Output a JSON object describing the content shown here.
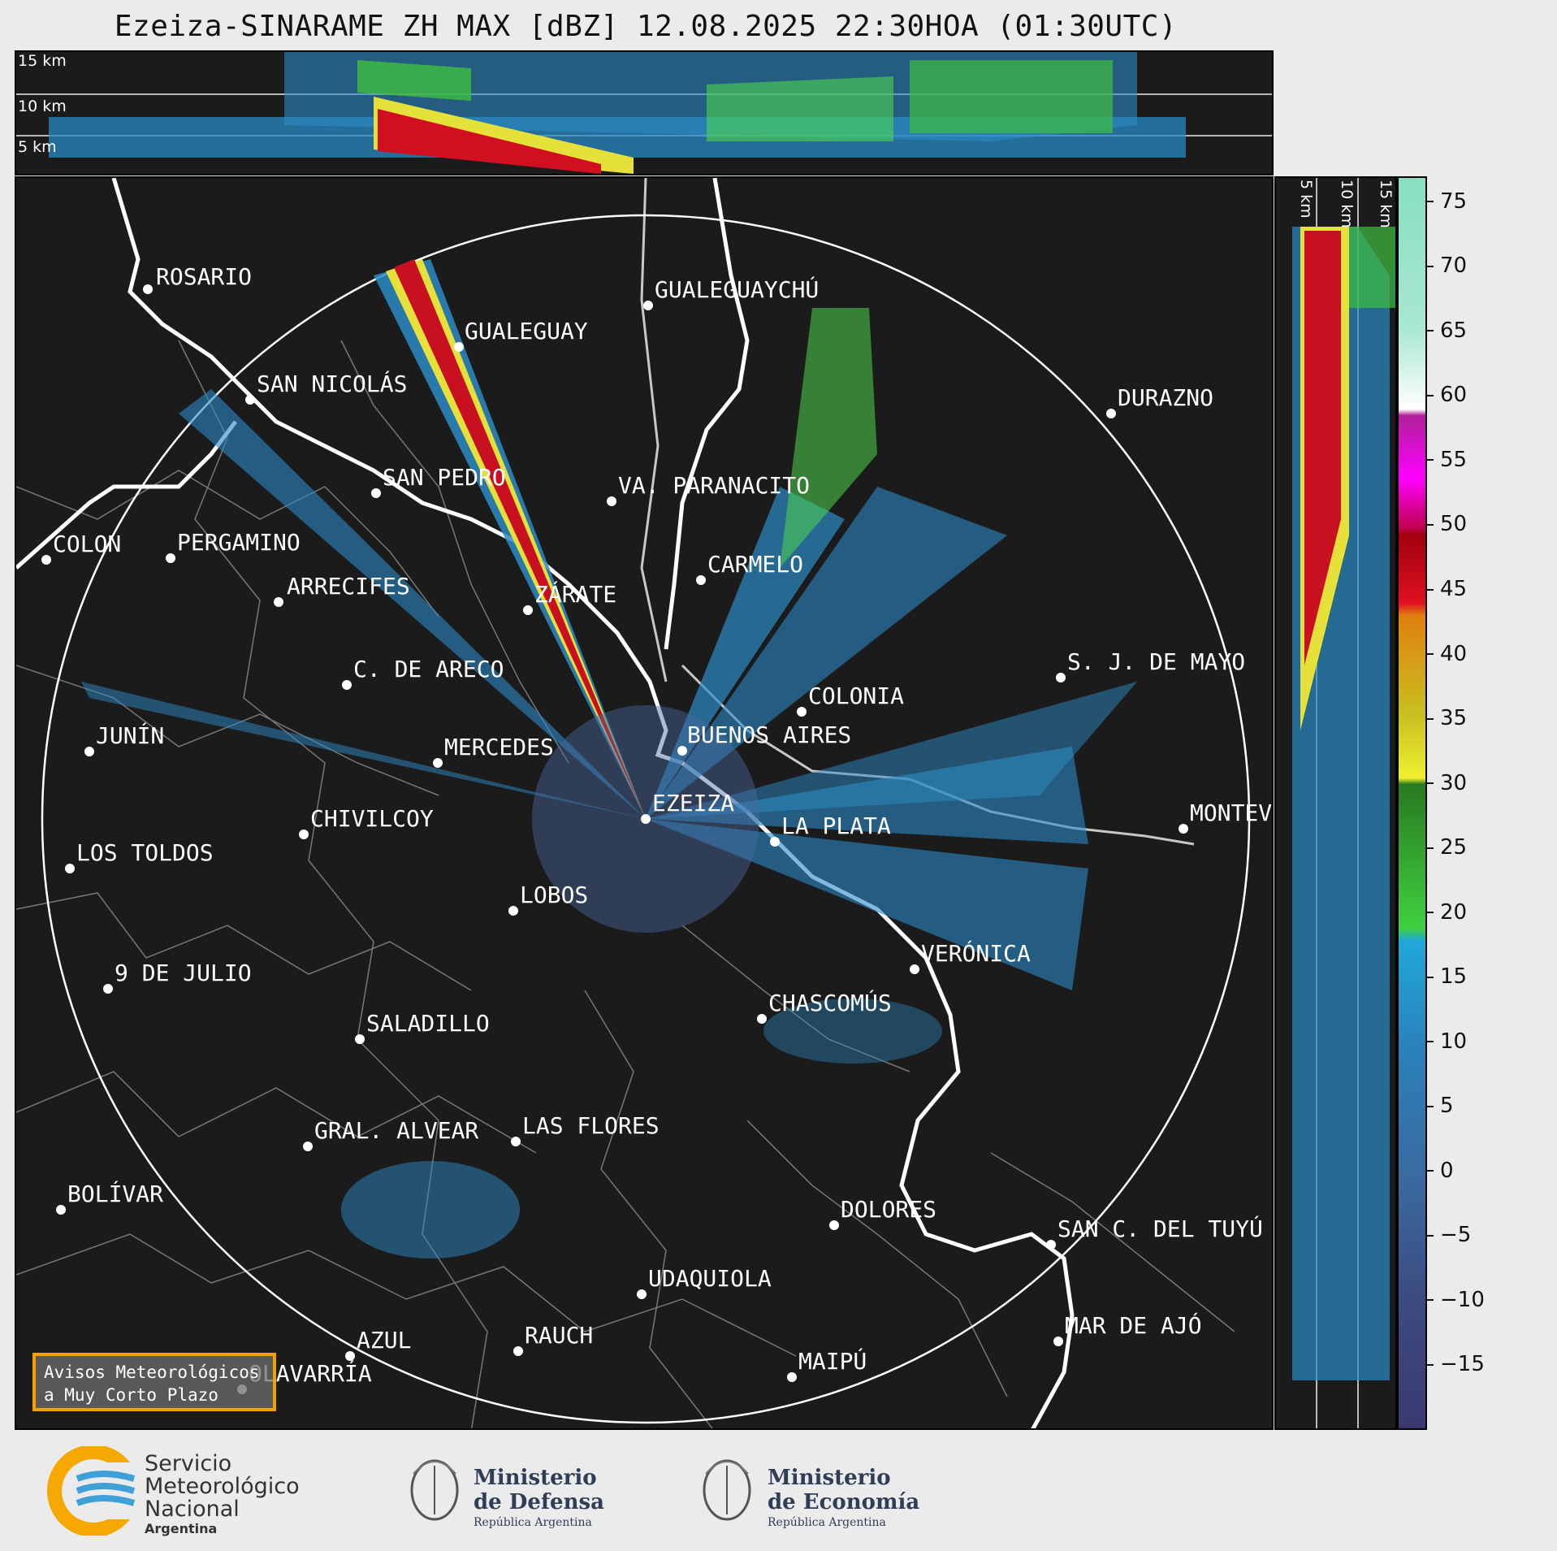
{
  "title": "Ezeiza-SINARAME ZH MAX [dBZ] 12.08.2025 22:30HOA (01:30UTC)",
  "altitude_labels": {
    "km15": "15 km",
    "km10": "10 km",
    "km5": "5 km"
  },
  "cities": [
    {
      "name": "ROSARIO"
    },
    {
      "name": "GUALEGUAYCHÚ"
    },
    {
      "name": "GUALEGUAY"
    },
    {
      "name": "SAN NICOLÁS"
    },
    {
      "name": "DURAZNO"
    },
    {
      "name": "SAN PEDRO"
    },
    {
      "name": "VA. PARANACITO"
    },
    {
      "name": "COLON"
    },
    {
      "name": "PERGAMINO"
    },
    {
      "name": "CARMELO"
    },
    {
      "name": "ARRECIFES"
    },
    {
      "name": "ZÁRATE"
    },
    {
      "name": "C. DE ARECO"
    },
    {
      "name": "S. J. DE MAYO"
    },
    {
      "name": "COLONIA"
    },
    {
      "name": "BUENOS AIRES"
    },
    {
      "name": "JUNÍN"
    },
    {
      "name": "MERCEDES"
    },
    {
      "name": "EZEIZA"
    },
    {
      "name": "MONTEVIDEO"
    },
    {
      "name": "CHIVILCOY"
    },
    {
      "name": "LA PLATA"
    },
    {
      "name": "LOS TOLDOS"
    },
    {
      "name": "LOBOS"
    },
    {
      "name": "VERÓNICA"
    },
    {
      "name": "9 DE JULIO"
    },
    {
      "name": "CHASCOMÚS"
    },
    {
      "name": "SALADILLO"
    },
    {
      "name": "GRAL. ALVEAR"
    },
    {
      "name": "LAS FLORES"
    },
    {
      "name": "BOLÍVAR"
    },
    {
      "name": "DOLORES"
    },
    {
      "name": "SAN C. DEL TUYÚ"
    },
    {
      "name": "UDAQUIOLA"
    },
    {
      "name": "MAR DE AJÓ"
    },
    {
      "name": "AZUL"
    },
    {
      "name": "RAUCH"
    },
    {
      "name": "OLAVARRÍA"
    },
    {
      "name": "MAIPÚ"
    }
  ],
  "colorbar": {
    "ticks": [
      "75",
      "70",
      "65",
      "60",
      "55",
      "50",
      "45",
      "40",
      "35",
      "30",
      "25",
      "20",
      "15",
      "10",
      "5",
      "0",
      "−5",
      "−10",
      "−15"
    ],
    "range": [
      -20,
      77
    ]
  },
  "avisos": {
    "line1": "Avisos Meteorológicos",
    "line2": "a Muy Corto Plazo"
  },
  "footer": {
    "smn_line1": "Servicio",
    "smn_line2": "Meteorológico",
    "smn_line3": "Nacional",
    "smn_line4": "Argentina",
    "defensa_line1": "Ministerio",
    "defensa_line2": "de Defensa",
    "defensa_line3": "República Argentina",
    "economia_line1": "Ministerio",
    "economia_line2": "de Economía",
    "economia_line3": "República Argentina"
  }
}
